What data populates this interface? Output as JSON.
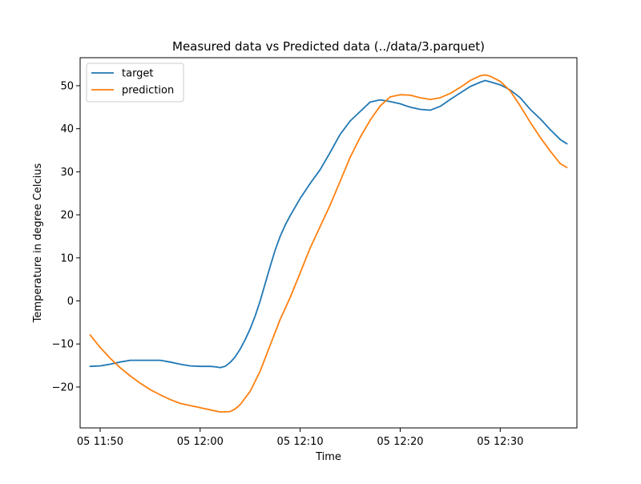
{
  "chart_data": {
    "type": "line",
    "title": "Measured data vs Predicted data (../data/3.parquet)",
    "xlabel": "Time",
    "ylabel": "Temperature in degree Celcius",
    "xlim": [
      "05 11:48:00",
      "05 12:37:40"
    ],
    "ylim": [
      -29.5,
      56.5
    ],
    "x_ticks": [
      {
        "label": "05 11:50",
        "value": "05 11:50:00"
      },
      {
        "label": "05 12:00",
        "value": "05 12:00:00"
      },
      {
        "label": "05 12:10",
        "value": "05 12:10:00"
      },
      {
        "label": "05 12:20",
        "value": "05 12:20:00"
      },
      {
        "label": "05 12:30",
        "value": "05 12:30:00"
      }
    ],
    "y_ticks": [
      -20,
      -10,
      0,
      10,
      20,
      30,
      40,
      50
    ],
    "grid": false,
    "legend_position": "top-left",
    "series": [
      {
        "name": "target",
        "color": "#1f77b4",
        "points": [
          [
            "05 11:49:00",
            -15.2
          ],
          [
            "05 11:50:00",
            -15.1
          ],
          [
            "05 11:51:00",
            -14.7
          ],
          [
            "05 11:52:00",
            -14.2
          ],
          [
            "05 11:53:00",
            -13.8
          ],
          [
            "05 11:54:00",
            -13.8
          ],
          [
            "05 11:55:00",
            -13.8
          ],
          [
            "05 11:56:00",
            -13.8
          ],
          [
            "05 11:57:00",
            -14.2
          ],
          [
            "05 11:58:00",
            -14.7
          ],
          [
            "05 11:59:00",
            -15.1
          ],
          [
            "05 12:00:00",
            -15.2
          ],
          [
            "05 12:01:00",
            -15.2
          ],
          [
            "05 12:01:30",
            -15.3
          ],
          [
            "05 12:02:00",
            -15.5
          ],
          [
            "05 12:02:30",
            -15.2
          ],
          [
            "05 12:03:00",
            -14.3
          ],
          [
            "05 12:03:30",
            -13.0
          ],
          [
            "05 12:04:00",
            -11.2
          ],
          [
            "05 12:04:30",
            -9.0
          ],
          [
            "05 12:05:00",
            -6.5
          ],
          [
            "05 12:05:30",
            -3.5
          ],
          [
            "05 12:06:00",
            0.0
          ],
          [
            "05 12:06:30",
            4.0
          ],
          [
            "05 12:07:00",
            8.0
          ],
          [
            "05 12:07:30",
            11.8
          ],
          [
            "05 12:08:00",
            15.0
          ],
          [
            "05 12:08:30",
            17.6
          ],
          [
            "05 12:09:00",
            19.8
          ],
          [
            "05 12:10:00",
            23.8
          ],
          [
            "05 12:11:00",
            27.3
          ],
          [
            "05 12:12:00",
            30.5
          ],
          [
            "05 12:13:00",
            34.5
          ],
          [
            "05 12:14:00",
            38.7
          ],
          [
            "05 12:15:00",
            41.8
          ],
          [
            "05 12:16:00",
            44.0
          ],
          [
            "05 12:17:00",
            46.2
          ],
          [
            "05 12:18:00",
            46.7
          ],
          [
            "05 12:19:00",
            46.3
          ],
          [
            "05 12:20:00",
            45.8
          ],
          [
            "05 12:21:00",
            45.0
          ],
          [
            "05 12:22:00",
            44.5
          ],
          [
            "05 12:23:00",
            44.3
          ],
          [
            "05 12:24:00",
            45.2
          ],
          [
            "05 12:25:00",
            46.8
          ],
          [
            "05 12:26:00",
            48.3
          ],
          [
            "05 12:27:00",
            49.8
          ],
          [
            "05 12:28:00",
            50.8
          ],
          [
            "05 12:28:30",
            51.2
          ],
          [
            "05 12:29:00",
            50.9
          ],
          [
            "05 12:30:00",
            50.2
          ],
          [
            "05 12:31:00",
            49.0
          ],
          [
            "05 12:32:00",
            47.2
          ],
          [
            "05 12:33:00",
            44.5
          ],
          [
            "05 12:34:00",
            42.3
          ],
          [
            "05 12:35:00",
            39.8
          ],
          [
            "05 12:36:00",
            37.5
          ],
          [
            "05 12:36:40",
            36.5
          ]
        ]
      },
      {
        "name": "prediction",
        "color": "#ff7f0e",
        "points": [
          [
            "05 11:49:00",
            -7.9
          ],
          [
            "05 11:50:00",
            -10.8
          ],
          [
            "05 11:51:00",
            -13.3
          ],
          [
            "05 11:52:00",
            -15.5
          ],
          [
            "05 11:53:00",
            -17.4
          ],
          [
            "05 11:54:00",
            -19.1
          ],
          [
            "05 11:55:00",
            -20.6
          ],
          [
            "05 11:56:00",
            -21.8
          ],
          [
            "05 11:57:00",
            -22.9
          ],
          [
            "05 11:58:00",
            -23.8
          ],
          [
            "05 11:59:00",
            -24.3
          ],
          [
            "05 12:00:00",
            -24.8
          ],
          [
            "05 12:01:00",
            -25.3
          ],
          [
            "05 12:02:00",
            -25.8
          ],
          [
            "05 12:03:00",
            -25.7
          ],
          [
            "05 12:03:30",
            -25.1
          ],
          [
            "05 12:04:00",
            -24.1
          ],
          [
            "05 12:05:00",
            -21.0
          ],
          [
            "05 12:06:00",
            -16.3
          ],
          [
            "05 12:07:00",
            -10.3
          ],
          [
            "05 12:08:00",
            -4.3
          ],
          [
            "05 12:09:00",
            0.8
          ],
          [
            "05 12:10:00",
            6.5
          ],
          [
            "05 12:11:00",
            12.3
          ],
          [
            "05 12:12:00",
            17.3
          ],
          [
            "05 12:13:00",
            22.3
          ],
          [
            "05 12:14:00",
            27.8
          ],
          [
            "05 12:15:00",
            33.4
          ],
          [
            "05 12:16:00",
            38.0
          ],
          [
            "05 12:17:00",
            42.0
          ],
          [
            "05 12:18:00",
            45.3
          ],
          [
            "05 12:19:00",
            47.4
          ],
          [
            "05 12:20:00",
            47.9
          ],
          [
            "05 12:21:00",
            47.8
          ],
          [
            "05 12:22:00",
            47.2
          ],
          [
            "05 12:23:00",
            46.8
          ],
          [
            "05 12:24:00",
            47.2
          ],
          [
            "05 12:25:00",
            48.2
          ],
          [
            "05 12:26:00",
            49.6
          ],
          [
            "05 12:27:00",
            51.2
          ],
          [
            "05 12:28:00",
            52.3
          ],
          [
            "05 12:28:30",
            52.5
          ],
          [
            "05 12:29:00",
            52.2
          ],
          [
            "05 12:30:00",
            51.0
          ],
          [
            "05 12:31:00",
            48.8
          ],
          [
            "05 12:32:00",
            45.3
          ],
          [
            "05 12:33:00",
            41.5
          ],
          [
            "05 12:34:00",
            38.0
          ],
          [
            "05 12:35:00",
            34.8
          ],
          [
            "05 12:36:00",
            31.9
          ],
          [
            "05 12:36:40",
            31.0
          ]
        ]
      }
    ]
  }
}
